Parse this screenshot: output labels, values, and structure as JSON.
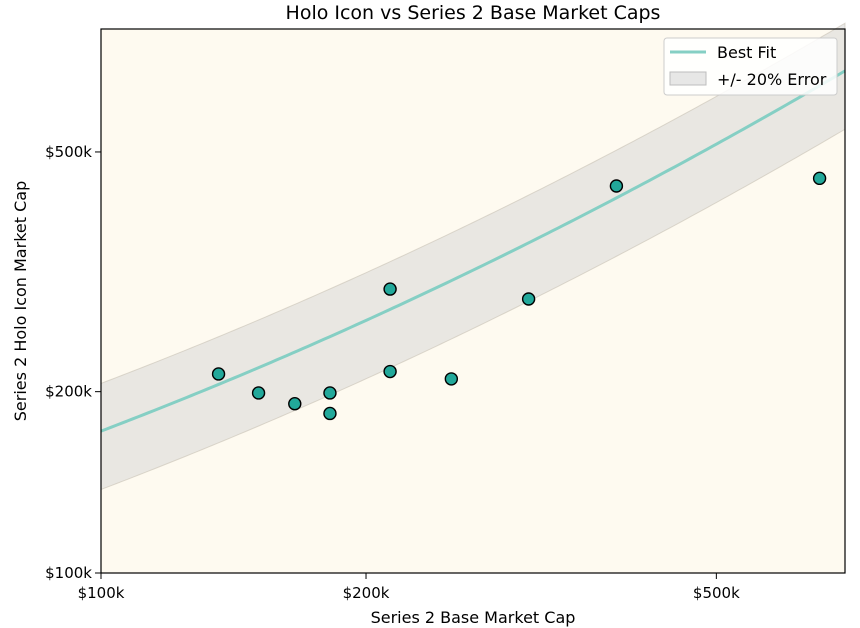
{
  "chart_data": {
    "type": "scatter",
    "title": "Holo Icon vs Series 2 Base Market Caps",
    "xlabel": "Series 2 Base Market Cap",
    "ylabel": "Series 2 Holo Icon Market Cap",
    "xscale": "log",
    "yscale": "log",
    "xlim": [
      100000,
      700000
    ],
    "ylim": [
      100000,
      800000
    ],
    "x_ticks": [
      {
        "value": 100000,
        "label": "$100k"
      },
      {
        "value": 200000,
        "label": "$200k"
      },
      {
        "value": 500000,
        "label": "$500k"
      }
    ],
    "y_ticks": [
      {
        "value": 100000,
        "label": "$100k"
      },
      {
        "value": 200000,
        "label": "$200k"
      },
      {
        "value": 500000,
        "label": "$500k"
      }
    ],
    "points": [
      {
        "x": 136000,
        "y": 214000
      },
      {
        "x": 151000,
        "y": 199000
      },
      {
        "x": 166000,
        "y": 191000
      },
      {
        "x": 182000,
        "y": 199000
      },
      {
        "x": 182000,
        "y": 184000
      },
      {
        "x": 213000,
        "y": 296000
      },
      {
        "x": 213000,
        "y": 216000
      },
      {
        "x": 250000,
        "y": 210000
      },
      {
        "x": 306000,
        "y": 285000
      },
      {
        "x": 385000,
        "y": 439000
      },
      {
        "x": 655000,
        "y": 452000
      }
    ],
    "best_fit": {
      "a": 172000,
      "b": 0.5568,
      "c": 0.1785,
      "x0": 100000
    },
    "error_band_fraction": 0.2,
    "legend": {
      "position": "top-right",
      "entries": [
        "Best Fit",
        "+/- 20% Error"
      ]
    },
    "grid": false,
    "colors": {
      "plot_background": "#fefaf0",
      "point_fill": "#22a89a",
      "point_edge": "#000000",
      "fit_line": "#85cfc4",
      "band_fill": "#d3d3d3"
    }
  }
}
